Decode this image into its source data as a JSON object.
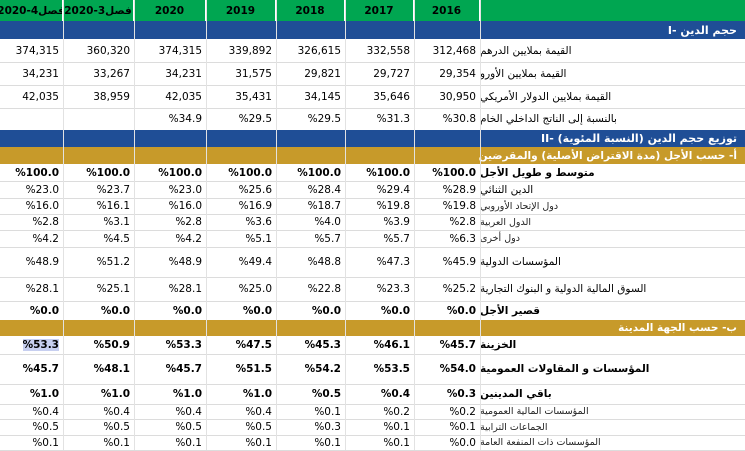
{
  "header": {
    "columns": [
      "2020-4فصل",
      "2020-3فصل",
      "2020",
      "2019",
      "2018",
      "2017",
      "2016"
    ]
  },
  "section1": {
    "title": "I- حجم الدين"
  },
  "rows1": [
    {
      "label": "القيمة بملايين الدرهم",
      "values": [
        "374,315",
        "360,320",
        "374,315",
        "339,892",
        "326,615",
        "332,558",
        "312,468"
      ]
    },
    {
      "label": "القيمة بملايين الأورو",
      "values": [
        "34,231",
        "33,267",
        "34,231",
        "31,575",
        "29,821",
        "29,727",
        "29,354"
      ]
    },
    {
      "label": "القيمة بملايين الدولار الأمريكي",
      "values": [
        "42,035",
        "38,959",
        "42,035",
        "35,431",
        "34,145",
        "35,646",
        "30,950"
      ]
    },
    {
      "label": "بالنسبة إلى الناتج الداخلي الخام",
      "values": [
        "",
        "",
        "%34.9",
        "%29.5",
        "%29.5",
        "%31.3",
        "%30.8"
      ]
    }
  ],
  "section2": {
    "title": "II- توزيع حجم الدين   (النسبة المئوية)"
  },
  "subA": {
    "title": "أ- حسب الأجل (مدة الاقتراض الأصلية) والمقرضين"
  },
  "rowsA": [
    {
      "label": "متوسط و طويل الأجل",
      "values": [
        "%100.0",
        "%100.0",
        "%100.0",
        "%100.0",
        "%100.0",
        "%100.0",
        "%100.0"
      ]
    },
    {
      "label": "الدين الثنائي",
      "values": [
        "%23.0",
        "%23.7",
        "%23.0",
        "%25.6",
        "%28.4",
        "%29.4",
        "%28.9"
      ]
    },
    {
      "label": "دول الإتحاد الأوروبي",
      "values": [
        "%16.0",
        "%16.1",
        "%16.0",
        "%16.9",
        "%18.7",
        "%19.8",
        "%19.8"
      ]
    },
    {
      "label": "الدول العربية",
      "values": [
        "%2.8",
        "%3.1",
        "%2.8",
        "%3.6",
        "%4.0",
        "%3.9",
        "%2.8"
      ]
    },
    {
      "label": "دول أخرى",
      "values": [
        "%4.2",
        "%4.5",
        "%4.2",
        "%5.1",
        "%5.7",
        "%5.7",
        "%6.3"
      ]
    },
    {
      "label": "المؤسسات الدولية",
      "values": [
        "%48.9",
        "%51.2",
        "%48.9",
        "%49.4",
        "%48.8",
        "%47.3",
        "%45.9"
      ]
    },
    {
      "label": "السوق المالية الدولية و البنوك التجارية",
      "values": [
        "%28.1",
        "%25.1",
        "%28.1",
        "%25.0",
        "%22.8",
        "%23.3",
        "%25.2"
      ]
    },
    {
      "label": "قصير الأجل",
      "values": [
        "%0.0",
        "%0.0",
        "%0.0",
        "%0.0",
        "%0.0",
        "%0.0",
        "%0.0"
      ]
    }
  ],
  "subB": {
    "title": "ب- حسب الجهة المدينة"
  },
  "rowsB": [
    {
      "label": "الخزينة",
      "values": [
        "%53.3",
        "%50.9",
        "%53.3",
        "%47.5",
        "%45.3",
        "%46.1",
        "%45.7"
      ]
    },
    {
      "label": "المؤسسات و المقاولات العمومية",
      "values": [
        "%45.7",
        "%48.1",
        "%45.7",
        "%51.5",
        "%54.2",
        "%53.5",
        "%54.0"
      ]
    },
    {
      "label": "باقي المدينين",
      "values": [
        "%1.0",
        "%1.0",
        "%1.0",
        "%1.0",
        "%0.5",
        "%0.4",
        "%0.3"
      ]
    },
    {
      "label": "المؤسسات المالية العمومية",
      "values": [
        "%0.4",
        "%0.4",
        "%0.4",
        "%0.4",
        "%0.1",
        "%0.2",
        "%0.2"
      ]
    },
    {
      "label": "الجماعات الترابية",
      "values": [
        "%0.5",
        "%0.5",
        "%0.5",
        "%0.5",
        "%0.3",
        "%0.1",
        "%0.1"
      ]
    },
    {
      "label": "المؤسسات ذات المنفعة العامة",
      "values": [
        "%0.1",
        "%0.1",
        "%0.1",
        "%0.1",
        "%0.1",
        "%0.1",
        "%0.0"
      ]
    }
  ]
}
